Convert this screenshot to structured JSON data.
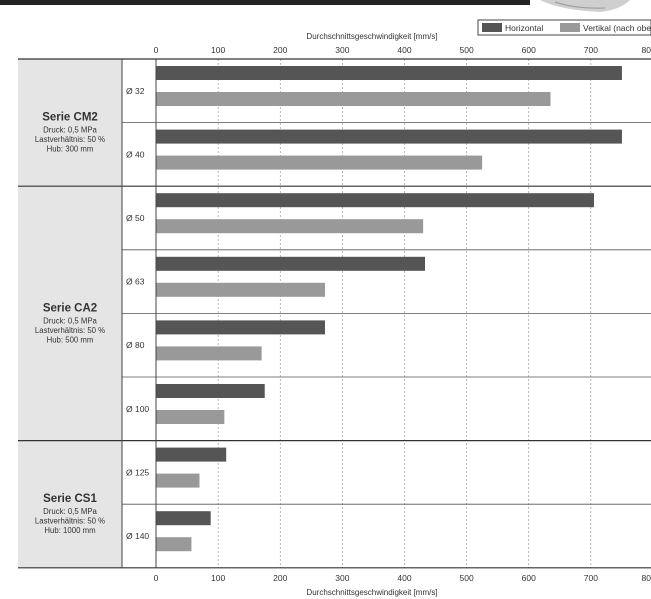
{
  "chart_data": {
    "type": "bar",
    "orientation": "horizontal",
    "xlabel_top": "Durchschnittsgeschwindigkeit [mm/s]",
    "xlabel_bottom": "Durchschnittsgeschwindigkeit [mm/s]",
    "xlim": [
      0,
      800
    ],
    "x_ticks": [
      "0",
      "100",
      "200",
      "300",
      "400",
      "500",
      "600",
      "700",
      "80"
    ],
    "grid": true,
    "legend_position": "top-right",
    "legend": [
      {
        "name": "Horizontal",
        "color": "#555555"
      },
      {
        "name": "Vertikal (nach ober",
        "color": "#999999"
      }
    ],
    "series_names": [
      "Horizontal",
      "Vertikal"
    ],
    "groups": [
      {
        "title": "Serie CM2",
        "details": [
          "Druck: 0,5 MPa",
          "Lastverhältnis: 50 %",
          "Hub: 300 mm"
        ],
        "sizes": [
          {
            "label": "Ø 32",
            "horizontal": 750,
            "vertical": 635
          },
          {
            "label": "Ø 40",
            "horizontal": 750,
            "vertical": 525
          }
        ]
      },
      {
        "title": "Serie CA2",
        "details": [
          "Druck: 0,5 MPa",
          "Lastverhältnis: 50 %",
          "Hub: 500 mm"
        ],
        "sizes": [
          {
            "label": "Ø 50",
            "horizontal": 705,
            "vertical": 430
          },
          {
            "label": "Ø 63",
            "horizontal": 433,
            "vertical": 272
          },
          {
            "label": "Ø 80",
            "horizontal": 272,
            "vertical": 170
          },
          {
            "label": "Ø 100",
            "horizontal": 175,
            "vertical": 110
          }
        ]
      },
      {
        "title": "Serie CS1",
        "details": [
          "Druck: 0,5 MPa",
          "Lastverhältnis: 50 %",
          "Hub: 1000 mm"
        ],
        "sizes": [
          {
            "label": "Ø 125",
            "horizontal": 113,
            "vertical": 70
          },
          {
            "label": "Ø 140",
            "horizontal": 88,
            "vertical": 57
          }
        ]
      }
    ]
  },
  "colors": {
    "horizontal": "#555555",
    "vertical": "#999999",
    "group_panel": "#e5e5e5",
    "header_bar": "#222222"
  }
}
